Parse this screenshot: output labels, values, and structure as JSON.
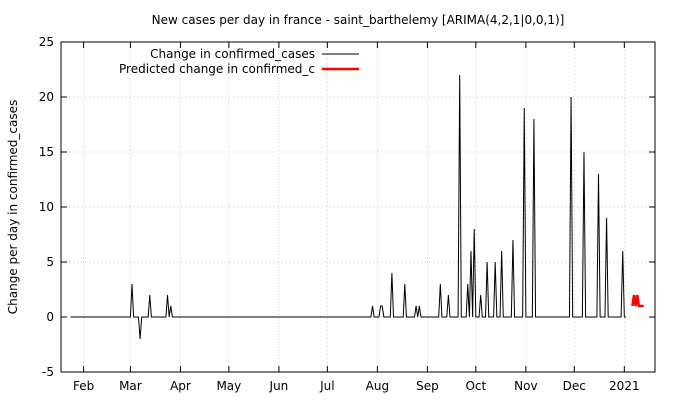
{
  "chart_data": {
    "type": "line",
    "title": "New cases per day in france - saint_barthelemy [ARIMA(4,2,1|0,0,1)]",
    "xlabel": "",
    "ylabel": "Change per day in confirmed_cases",
    "ylim": [
      -5,
      25
    ],
    "yticks": [
      -5,
      0,
      5,
      10,
      15,
      20,
      25
    ],
    "xlim": [
      "2020-01-18",
      "2021-01-20"
    ],
    "xticks": [
      {
        "label": "Feb",
        "date": "2020-02-01"
      },
      {
        "label": "Mar",
        "date": "2020-03-01"
      },
      {
        "label": "Apr",
        "date": "2020-04-01"
      },
      {
        "label": "May",
        "date": "2020-05-01"
      },
      {
        "label": "Jun",
        "date": "2020-06-01"
      },
      {
        "label": "Jul",
        "date": "2020-07-01"
      },
      {
        "label": "Aug",
        "date": "2020-08-01"
      },
      {
        "label": "Sep",
        "date": "2020-09-01"
      },
      {
        "label": "Oct",
        "date": "2020-10-01"
      },
      {
        "label": "Nov",
        "date": "2020-11-01"
      },
      {
        "label": "Dec",
        "date": "2020-12-01"
      },
      {
        "label": "2021",
        "date": "2021-01-01"
      }
    ],
    "grid": true,
    "legend_position": "top-left",
    "series": [
      {
        "name": "Change in confirmed_cases",
        "color": "#000000",
        "points": [
          [
            "2020-01-24",
            0
          ],
          [
            "2020-03-01",
            0
          ],
          [
            "2020-03-02",
            3
          ],
          [
            "2020-03-03",
            0
          ],
          [
            "2020-03-06",
            0
          ],
          [
            "2020-03-07",
            -2
          ],
          [
            "2020-03-08",
            0
          ],
          [
            "2020-03-12",
            0
          ],
          [
            "2020-03-13",
            2
          ],
          [
            "2020-03-14",
            0
          ],
          [
            "2020-03-23",
            0
          ],
          [
            "2020-03-24",
            2
          ],
          [
            "2020-03-25",
            0
          ],
          [
            "2020-03-26",
            1
          ],
          [
            "2020-03-27",
            0
          ],
          [
            "2020-07-28",
            0
          ],
          [
            "2020-07-29",
            1
          ],
          [
            "2020-07-30",
            0
          ],
          [
            "2020-08-02",
            0
          ],
          [
            "2020-08-03",
            1
          ],
          [
            "2020-08-04",
            1
          ],
          [
            "2020-08-05",
            0
          ],
          [
            "2020-08-09",
            0
          ],
          [
            "2020-08-10",
            4
          ],
          [
            "2020-08-11",
            0
          ],
          [
            "2020-08-17",
            0
          ],
          [
            "2020-08-18",
            3
          ],
          [
            "2020-08-19",
            0
          ],
          [
            "2020-08-24",
            0
          ],
          [
            "2020-08-25",
            1
          ],
          [
            "2020-08-26",
            0
          ],
          [
            "2020-08-27",
            1
          ],
          [
            "2020-08-28",
            0
          ],
          [
            "2020-09-08",
            0
          ],
          [
            "2020-09-09",
            3
          ],
          [
            "2020-09-10",
            0
          ],
          [
            "2020-09-13",
            0
          ],
          [
            "2020-09-14",
            2
          ],
          [
            "2020-09-15",
            0
          ],
          [
            "2020-09-20",
            0
          ],
          [
            "2020-09-21",
            22
          ],
          [
            "2020-09-22",
            0
          ],
          [
            "2020-09-25",
            0
          ],
          [
            "2020-09-26",
            3
          ],
          [
            "2020-09-27",
            0
          ],
          [
            "2020-09-28",
            6
          ],
          [
            "2020-09-29",
            0
          ],
          [
            "2020-09-30",
            8
          ],
          [
            "2020-10-01",
            0
          ],
          [
            "2020-10-03",
            0
          ],
          [
            "2020-10-04",
            2
          ],
          [
            "2020-10-05",
            0
          ],
          [
            "2020-10-07",
            0
          ],
          [
            "2020-10-08",
            5
          ],
          [
            "2020-10-09",
            0
          ],
          [
            "2020-10-12",
            0
          ],
          [
            "2020-10-13",
            5
          ],
          [
            "2020-10-14",
            0
          ],
          [
            "2020-10-16",
            0
          ],
          [
            "2020-10-17",
            6
          ],
          [
            "2020-10-18",
            0
          ],
          [
            "2020-10-23",
            0
          ],
          [
            "2020-10-24",
            7
          ],
          [
            "2020-10-25",
            0
          ],
          [
            "2020-10-30",
            0
          ],
          [
            "2020-10-31",
            19
          ],
          [
            "2020-11-01",
            0
          ],
          [
            "2020-11-05",
            0
          ],
          [
            "2020-11-06",
            18
          ],
          [
            "2020-11-07",
            0
          ],
          [
            "2020-11-28",
            0
          ],
          [
            "2020-11-29",
            20
          ],
          [
            "2020-11-30",
            0
          ],
          [
            "2020-12-06",
            0
          ],
          [
            "2020-12-07",
            15
          ],
          [
            "2020-12-08",
            0
          ],
          [
            "2020-12-15",
            0
          ],
          [
            "2020-12-16",
            13
          ],
          [
            "2020-12-17",
            0
          ],
          [
            "2020-12-20",
            0
          ],
          [
            "2020-12-21",
            9
          ],
          [
            "2020-12-22",
            0
          ],
          [
            "2020-12-30",
            0
          ],
          [
            "2020-12-31",
            6
          ],
          [
            "2021-01-01",
            0
          ],
          [
            "2021-01-02",
            0
          ]
        ]
      },
      {
        "name": "Predicted change in confirmed_c",
        "color": "#ff0000",
        "points": [
          [
            "2021-01-06",
            1
          ],
          [
            "2021-01-07",
            2
          ],
          [
            "2021-01-08",
            1
          ],
          [
            "2021-01-09",
            2
          ],
          [
            "2021-01-10",
            1
          ],
          [
            "2021-01-11",
            1
          ],
          [
            "2021-01-12",
            1
          ],
          [
            "2021-01-13",
            1
          ]
        ]
      }
    ]
  }
}
